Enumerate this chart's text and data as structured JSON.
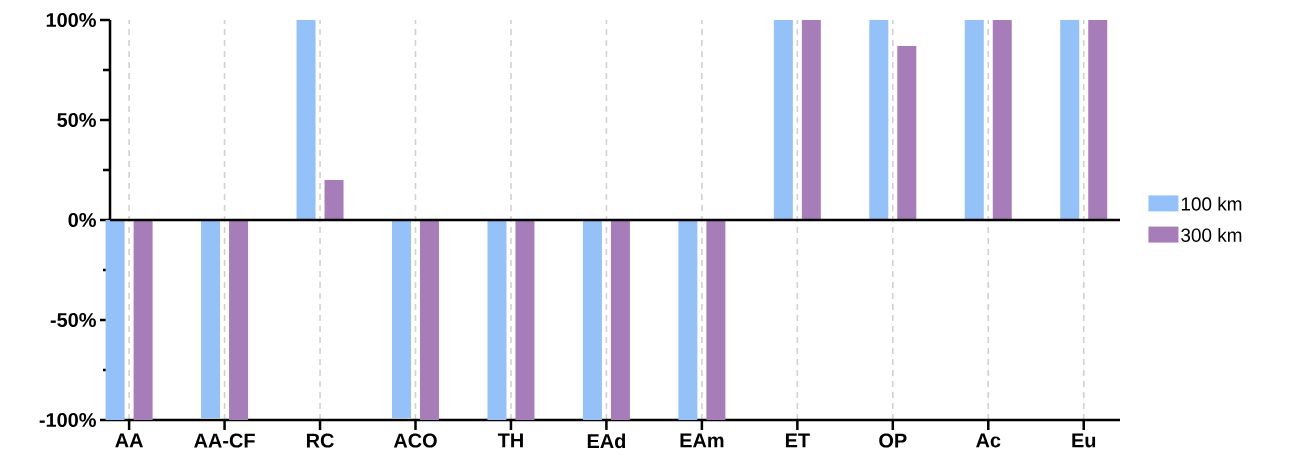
{
  "chart_data": {
    "type": "bar",
    "categories": [
      "AA",
      "AA-CF",
      "RC",
      "ACO",
      "TH",
      "EAd",
      "EAm",
      "ET",
      "OP",
      "Ac",
      "Eu"
    ],
    "series": [
      {
        "name": "100 km",
        "color": "#93c1f8",
        "values": [
          -100,
          -99,
          100,
          -99,
          -100,
          -100,
          -100,
          100,
          100,
          100,
          100
        ]
      },
      {
        "name": "300 km",
        "color": "#a77db9",
        "values": [
          -100,
          -100,
          20,
          -100,
          -100,
          -100,
          -100,
          100,
          87,
          100,
          100
        ]
      }
    ],
    "ylim": [
      -100,
      100
    ],
    "yticks": [
      {
        "value": -100,
        "label": "-100%"
      },
      {
        "value": -75,
        "label": null
      },
      {
        "value": -50,
        "label": "-50%"
      },
      {
        "value": -25,
        "label": null
      },
      {
        "value": 0,
        "label": "0%"
      },
      {
        "value": 25,
        "label": null
      },
      {
        "value": 50,
        "label": "50%"
      },
      {
        "value": 75,
        "label": null
      },
      {
        "value": 100,
        "label": "100%"
      }
    ],
    "ref_lines": [
      {
        "axis": "y",
        "value": 0
      }
    ],
    "grid": "x",
    "legend": "right"
  }
}
